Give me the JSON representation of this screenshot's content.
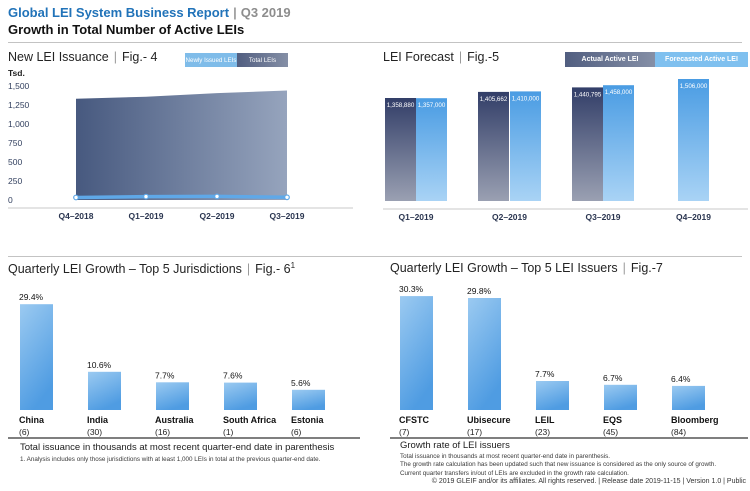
{
  "page": {
    "pipe": "|",
    "header": {
      "title": "Global LEI System Business Report",
      "period": "Q3 2019",
      "subtitle": "Growth in Total Number of Active LEIs"
    },
    "footnotes_left": {
      "heading": "Total issuance in thousands at most recent quarter-end date in parenthesis",
      "note": "1. Analysis includes only those jurisdictions with at least 1,000 LEIs in total at the previous quarter-end date."
    },
    "footnotes_right": {
      "heading": "Growth rate of LEI issuers",
      "note1": "Total issuance in thousands at most recent quarter-end date in parenthesis.",
      "note2": "The growth rate calculation has been updated such that new issuance is considered as the only source of growth. Current quarter transfers in/out of LEIs are excluded in the growth rate calculation."
    },
    "footer": "© 2019 GLEIF and/or its affiliates. All rights reserved. | Release date 2019-11-15 | Version 1.0 | Public"
  },
  "chart_data": [
    {
      "id": "fig4",
      "type": "area",
      "title": "New LEI Issuance",
      "fig_label": "Fig.- 4",
      "y_unit": "Tsd.",
      "ylim": [
        0,
        1500
      ],
      "y_tick_labels": [
        "1,500",
        "1,250",
        "1,000",
        "750",
        "500",
        "250",
        "0"
      ],
      "categories": [
        "Q4–2018",
        "Q1–2019",
        "Q2–2019",
        "Q3–2019"
      ],
      "legend": [
        {
          "label": "Newly Issued LEIs"
        },
        {
          "label": "Total LEIs"
        }
      ],
      "series": [
        {
          "name": "Total LEIs",
          "type": "area",
          "values_tsd": [
            1331,
            1359,
            1406,
            1441
          ]
        },
        {
          "name": "Newly Issued LEIs",
          "type": "line",
          "values_tsd": [
            33,
            45,
            47,
            35
          ]
        }
      ]
    },
    {
      "id": "fig5",
      "type": "bar",
      "title": "LEI Forecast",
      "fig_label": "Fig.-5",
      "categories": [
        "Q1–2019",
        "Q2–2019",
        "Q3–2019",
        "Q4–2019"
      ],
      "legend": [
        {
          "label": "Actual Active LEI"
        },
        {
          "label": "Forecasted Active LEI"
        }
      ],
      "series": [
        {
          "name": "Actual Active LEI",
          "values": [
            1358880,
            1405662,
            1440795,
            null
          ],
          "labels": [
            "1,358,880",
            "1,405,662",
            "1,440,795",
            null
          ]
        },
        {
          "name": "Forecasted Active LEI",
          "values": [
            1357000,
            1410000,
            1458000,
            1506000
          ],
          "labels": [
            "1,357,000",
            "1,410,000",
            "1,458,000",
            "1,506,000"
          ]
        }
      ]
    },
    {
      "id": "fig6",
      "type": "bar",
      "title": "Quarterly LEI Growth – Top 5 Jurisdictions",
      "fig_label": "Fig.- 6",
      "fig_superscript": "1",
      "categories": [
        "China",
        "India",
        "Australia",
        "South Africa",
        "Estonia"
      ],
      "counts": [
        "(6)",
        "(30)",
        "(16)",
        "(1)",
        "(6)"
      ],
      "values_pct": [
        29.4,
        10.6,
        7.7,
        7.6,
        5.6
      ],
      "labels": [
        "29.4%",
        "10.6%",
        "7.7%",
        "7.6%",
        "5.6%"
      ]
    },
    {
      "id": "fig7",
      "type": "bar",
      "title": "Quarterly LEI Growth – Top 5 LEI Issuers",
      "fig_label": "Fig.-7",
      "categories": [
        "CFSTC",
        "Ubisecure",
        "LEIL",
        "EQS",
        "Bloomberg"
      ],
      "counts": [
        "(7)",
        "(17)",
        "(23)",
        "(45)",
        "(84)"
      ],
      "values_pct": [
        30.3,
        29.8,
        7.7,
        6.7,
        6.4
      ],
      "labels": [
        "30.3%",
        "29.8%",
        "7.7%",
        "6.7%",
        "6.4%"
      ]
    }
  ],
  "colors": {
    "brand_blue": "#2173b9",
    "header_gray": "#8d8d8d",
    "light_blue_top": "#9bcaf1",
    "light_blue_bottom": "#4f9ce2",
    "dark_bar_top": "#323e68",
    "dark_bar_bottom": "#9aa0b2",
    "forecast_bar_top": "#4a9ce3",
    "forecast_bar_bottom": "#a9d3f5",
    "area_left": "#47597f",
    "area_right": "#96a4bd",
    "issuance_line": "#5fa8e8",
    "legend_light_blue": "#7fbce9",
    "legend_dark_from": "#515e80",
    "legend_dark_to": "#858fa6",
    "legend_forecast_flat": "#7fc0ef",
    "axis_gray": "#c9c9c9",
    "bottom_rule_gray": "#555555",
    "tick_text": "#32405f",
    "x_label_text": "#2a3550"
  }
}
